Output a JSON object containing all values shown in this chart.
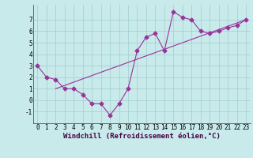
{
  "scatter_x": [
    0,
    1,
    2,
    3,
    4,
    5,
    6,
    7,
    8,
    9,
    10,
    11,
    12,
    13,
    14,
    15,
    16,
    17,
    18,
    19,
    20,
    21,
    22,
    23
  ],
  "scatter_y": [
    3.0,
    2.0,
    1.8,
    1.0,
    1.0,
    0.5,
    -0.3,
    -0.3,
    -1.3,
    -0.3,
    1.0,
    4.3,
    5.5,
    5.8,
    4.3,
    7.7,
    7.2,
    7.0,
    6.0,
    5.8,
    6.0,
    6.3,
    6.5,
    7.0
  ],
  "trend_x": [
    2,
    23
  ],
  "trend_y": [
    1.0,
    7.0
  ],
  "line_color": "#993399",
  "bg_color": "#c8eaea",
  "grid_color": "#a0cccc",
  "xlabel": "Windchill (Refroidissement éolien,°C)",
  "xlim": [
    -0.5,
    23.5
  ],
  "ylim": [
    -2.0,
    8.3
  ],
  "yticks": [
    -1,
    0,
    1,
    2,
    3,
    4,
    5,
    6,
    7
  ],
  "xticks": [
    0,
    1,
    2,
    3,
    4,
    5,
    6,
    7,
    8,
    9,
    10,
    11,
    12,
    13,
    14,
    15,
    16,
    17,
    18,
    19,
    20,
    21,
    22,
    23
  ],
  "marker_size": 2.5,
  "line_width": 0.8,
  "xlabel_fontsize": 6.5,
  "tick_fontsize": 5.5
}
